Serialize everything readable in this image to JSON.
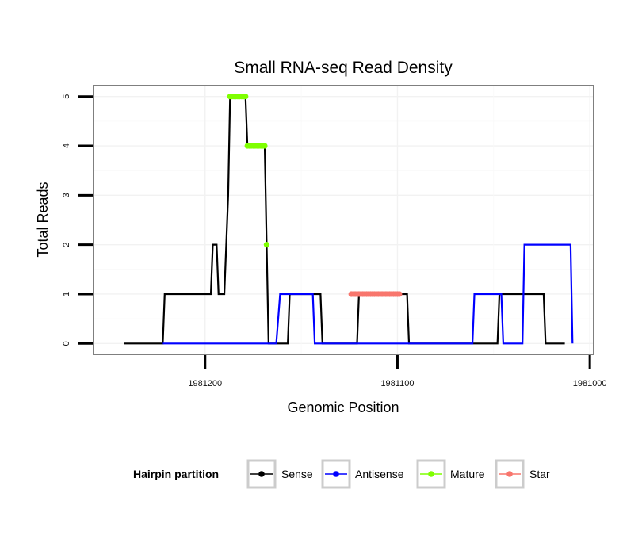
{
  "chart_data": {
    "type": "line",
    "title": "Small RNA-seq Read Density",
    "xlabel": "Genomic Position",
    "ylabel": "Total Reads",
    "x_reversed": true,
    "xlim": [
      1981258,
      1980998
    ],
    "ylim": [
      -0.22,
      5.22
    ],
    "x_ticks": [
      1981200,
      1981100,
      1981000
    ],
    "x_tick_labels": [
      "1981200",
      "1981100",
      "1981000"
    ],
    "y_ticks": [
      0,
      1,
      2,
      3,
      4,
      5
    ],
    "y_tick_labels": [
      "0",
      "1",
      "2",
      "3",
      "4",
      "5"
    ],
    "grid": true,
    "legend": {
      "title": "Hairpin partition",
      "position": "bottom",
      "entries": [
        {
          "name": "Sense",
          "color": "#000000"
        },
        {
          "name": "Antisense",
          "color": "#0000ff"
        },
        {
          "name": "Mature",
          "color": "#7fff00"
        },
        {
          "name": "Star",
          "color": "#f8766d"
        }
      ]
    },
    "series": [
      {
        "name": "Sense",
        "kind": "line",
        "color": "#000000",
        "points": [
          [
            1981242,
            0
          ],
          [
            1981222,
            0
          ],
          [
            1981221,
            1
          ],
          [
            1981197,
            1
          ],
          [
            1981196,
            2
          ],
          [
            1981194,
            2
          ],
          [
            1981193,
            1
          ],
          [
            1981190,
            1
          ],
          [
            1981188,
            3
          ],
          [
            1981187,
            5
          ],
          [
            1981179,
            5
          ],
          [
            1981178,
            4
          ],
          [
            1981169,
            4
          ],
          [
            1981167,
            0
          ],
          [
            1981157,
            0
          ],
          [
            1981156,
            1
          ],
          [
            1981140,
            1
          ],
          [
            1981139,
            0
          ],
          [
            1981121,
            0
          ],
          [
            1981120,
            1
          ],
          [
            1981095,
            1
          ],
          [
            1981094,
            0
          ],
          [
            1981048,
            0
          ],
          [
            1981047,
            1
          ],
          [
            1981024,
            1
          ],
          [
            1981023,
            0
          ],
          [
            1981013,
            0
          ]
        ]
      },
      {
        "name": "Antisense",
        "kind": "line",
        "color": "#0000ff",
        "points": [
          [
            1981222,
            0
          ],
          [
            1981163,
            0
          ],
          [
            1981161,
            1
          ],
          [
            1981144,
            1
          ],
          [
            1981143,
            0
          ],
          [
            1981061,
            0
          ],
          [
            1981060,
            1
          ],
          [
            1981046,
            1
          ],
          [
            1981045,
            0
          ],
          [
            1981035,
            0
          ],
          [
            1981034,
            2
          ],
          [
            1981010,
            2
          ],
          [
            1981009,
            0
          ]
        ]
      },
      {
        "name": "Mature",
        "kind": "points",
        "color": "#7fff00",
        "points": [
          [
            1981187,
            5
          ],
          [
            1981186,
            5
          ],
          [
            1981185,
            5
          ],
          [
            1981184,
            5
          ],
          [
            1981183,
            5
          ],
          [
            1981182,
            5
          ],
          [
            1981181,
            5
          ],
          [
            1981180,
            5
          ],
          [
            1981179,
            5
          ],
          [
            1981178,
            4
          ],
          [
            1981177,
            4
          ],
          [
            1981176,
            4
          ],
          [
            1981175,
            4
          ],
          [
            1981174,
            4
          ],
          [
            1981173,
            4
          ],
          [
            1981172,
            4
          ],
          [
            1981171,
            4
          ],
          [
            1981170,
            4
          ],
          [
            1981169,
            4
          ],
          [
            1981168,
            2
          ]
        ]
      },
      {
        "name": "Star",
        "kind": "points",
        "color": "#f8766d",
        "points": [
          [
            1981124,
            1
          ],
          [
            1981123,
            1
          ],
          [
            1981122,
            1
          ],
          [
            1981121,
            1
          ],
          [
            1981120,
            1
          ],
          [
            1981119,
            1
          ],
          [
            1981118,
            1
          ],
          [
            1981117,
            1
          ],
          [
            1981116,
            1
          ],
          [
            1981115,
            1
          ],
          [
            1981114,
            1
          ],
          [
            1981113,
            1
          ],
          [
            1981112,
            1
          ],
          [
            1981111,
            1
          ],
          [
            1981110,
            1
          ],
          [
            1981109,
            1
          ],
          [
            1981108,
            1
          ],
          [
            1981107,
            1
          ],
          [
            1981106,
            1
          ],
          [
            1981105,
            1
          ],
          [
            1981104,
            1
          ],
          [
            1981103,
            1
          ],
          [
            1981102,
            1
          ],
          [
            1981101,
            1
          ],
          [
            1981100,
            1
          ],
          [
            1981099,
            1
          ]
        ]
      }
    ]
  }
}
